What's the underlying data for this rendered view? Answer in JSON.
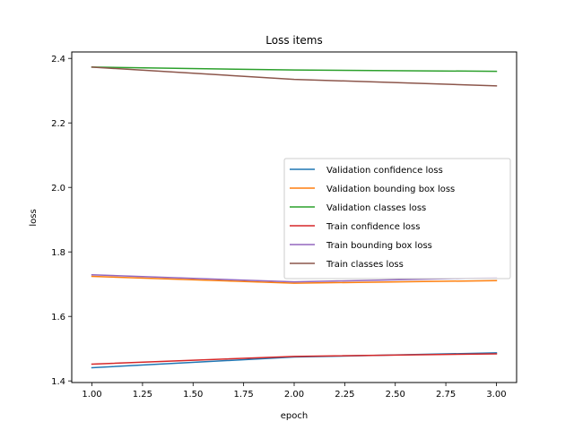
{
  "chart_data": {
    "type": "line",
    "title": "Loss items",
    "xlabel": "epoch",
    "ylabel": "loss",
    "xlim": [
      0.9,
      3.1
    ],
    "ylim": [
      1.395,
      2.42
    ],
    "xticks": [
      1.0,
      1.25,
      1.5,
      1.75,
      2.0,
      2.25,
      2.5,
      2.75,
      3.0
    ],
    "xtick_labels": [
      "1.00",
      "1.25",
      "1.50",
      "1.75",
      "2.00",
      "2.25",
      "2.50",
      "2.75",
      "3.00"
    ],
    "yticks": [
      1.4,
      1.6,
      1.8,
      2.0,
      2.2,
      2.4
    ],
    "ytick_labels": [
      "1.4",
      "1.6",
      "1.8",
      "2.0",
      "2.2",
      "2.4"
    ],
    "x": [
      1,
      2,
      3
    ],
    "grid": false,
    "legend_position": "center-right",
    "series": [
      {
        "name": "Validation confidence loss",
        "values": [
          1.441,
          1.474,
          1.487
        ],
        "color": "#1f77b4"
      },
      {
        "name": "Validation bounding box loss",
        "values": [
          1.724,
          1.703,
          1.711
        ],
        "color": "#ff7f0e"
      },
      {
        "name": "Validation classes loss",
        "values": [
          2.373,
          2.364,
          2.36
        ],
        "color": "#2ca02c"
      },
      {
        "name": "Train confidence loss",
        "values": [
          1.452,
          1.476,
          1.484
        ],
        "color": "#d62728"
      },
      {
        "name": "Train bounding box loss",
        "values": [
          1.729,
          1.707,
          1.72
        ],
        "color": "#9467bd"
      },
      {
        "name": "Train classes loss",
        "values": [
          2.373,
          2.335,
          2.315
        ],
        "color": "#8c564b"
      }
    ]
  }
}
